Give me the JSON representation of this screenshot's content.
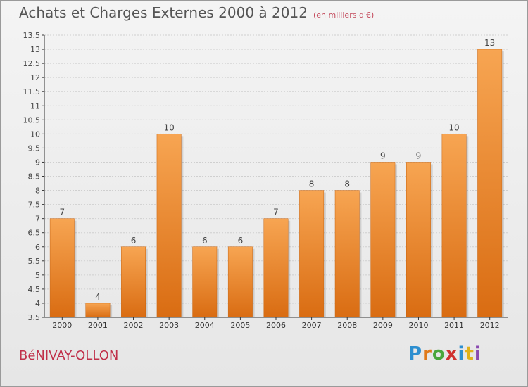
{
  "header": {
    "title": "Achats et Charges Externes 2000 à 2012",
    "unit": "(en milliers d'€)"
  },
  "footer": {
    "commune": "BéNIVAY-OLLON",
    "brand": "Proxiti"
  },
  "colors": {
    "bar_top": "#f7a552",
    "bar_bottom": "#d96c12",
    "grid": "#cfcfcf",
    "axis": "#333333"
  },
  "chart_data": {
    "type": "bar",
    "title": "Achats et Charges Externes 2000 à 2012",
    "subtitle": "(en milliers d'€)",
    "categories": [
      "2000",
      "2001",
      "2002",
      "2003",
      "2004",
      "2005",
      "2006",
      "2007",
      "2008",
      "2009",
      "2010",
      "2011",
      "2012"
    ],
    "values": [
      7,
      4,
      6,
      10,
      6,
      6,
      7,
      8,
      8,
      9,
      9,
      10,
      13
    ],
    "value_labels": [
      "7",
      "4",
      "6",
      "10",
      "6",
      "6",
      "7",
      "8",
      "8",
      "9",
      "9",
      "10",
      "13"
    ],
    "ylim": [
      3.5,
      13.5
    ],
    "yticks": [
      3.5,
      4,
      4.5,
      5,
      5.5,
      6,
      6.5,
      7,
      7.5,
      8,
      8.5,
      9,
      9.5,
      10,
      10.5,
      11,
      11.5,
      12,
      12.5,
      13,
      13.5
    ],
    "ytick_labels": [
      "3.5",
      "4",
      "4.5",
      "5",
      "5.5",
      "6",
      "6.5",
      "7",
      "7.5",
      "8",
      "8.5",
      "9",
      "9.5",
      "10",
      "10.5",
      "11",
      "11.5",
      "12",
      "12.5",
      "13",
      "13.5"
    ],
    "grid": true
  }
}
